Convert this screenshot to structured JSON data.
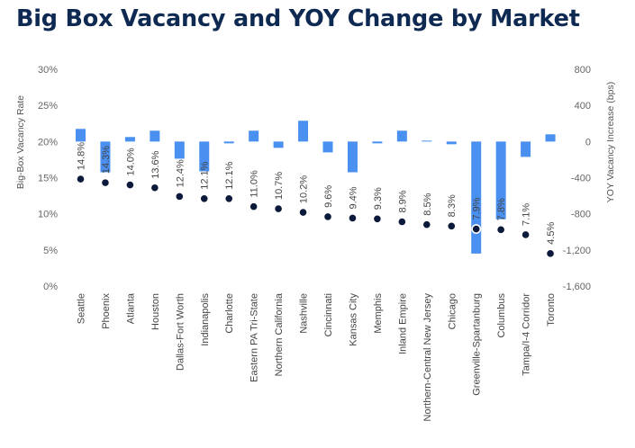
{
  "title": "Big Box Vacancy and YOY Change by Market",
  "chart_data": {
    "type": "bar+scatter",
    "categories": [
      "Seattle",
      "Phoenix",
      "Atlanta",
      "Houston",
      "Dallas-Fort Worth",
      "Indianapolis",
      "Charlotte",
      "Eastern PA Tri-State",
      "Northern California",
      "Nashville",
      "Cincinnati",
      "Kansas City",
      "Memphis",
      "Inland Empire",
      "Northern-Central New Jersey",
      "Chicago",
      "Greenville-Spartanburg",
      "Columbus",
      "Tampa/I-4 Corridor",
      "Toronto"
    ],
    "series": [
      {
        "name": "",
        "type": "bar",
        "axis": "right",
        "color": "#4a90f0",
        "values": [
          140,
          -340,
          50,
          120,
          -190,
          -330,
          -20,
          120,
          -70,
          230,
          -120,
          -340,
          -20,
          120,
          10,
          -30,
          -1240,
          -860,
          -170,
          80
        ]
      },
      {
        "name": "",
        "type": "scatter",
        "axis": "left",
        "color": "#0b1a3a",
        "values": [
          14.8,
          14.3,
          14.0,
          13.6,
          12.4,
          12.1,
          12.1,
          11.0,
          10.7,
          10.2,
          9.6,
          9.4,
          9.3,
          8.9,
          8.5,
          8.3,
          7.9,
          7.8,
          7.1,
          4.5
        ],
        "labels": [
          "14.8%",
          "14.3%",
          "14.0%",
          "13.6%",
          "12.4%",
          "12.1%",
          "12.1%",
          "11.0%",
          "10.7%",
          "10.2%",
          "9.6%",
          "9.4%",
          "9.3%",
          "8.9%",
          "8.5%",
          "8.3%",
          "7.9%",
          "7.8%",
          "7.1%",
          "4.5%"
        ]
      }
    ],
    "ylabel_left": "Big-Box Vacancy Rate",
    "ylabel_right": "YOY Vacancy Increase (bps)",
    "ylim_left": [
      0,
      30
    ],
    "ylim_right": [
      -1600,
      800
    ],
    "yticks_left": [
      "0%",
      "5%",
      "10%",
      "15%",
      "20%",
      "25%",
      "30%"
    ],
    "yticks_right": [
      "-1,600",
      "-1,200",
      "-800",
      "-400",
      "0",
      "400",
      "800"
    ],
    "grid": false,
    "legend": "none"
  }
}
